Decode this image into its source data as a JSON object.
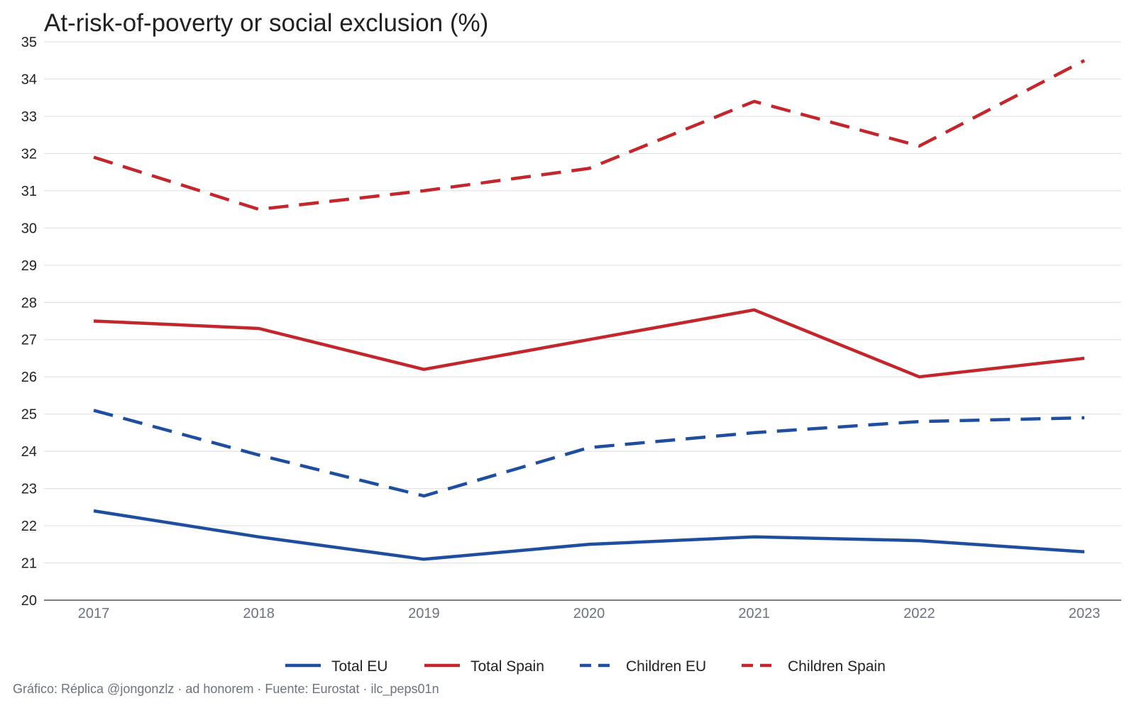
{
  "chart_data": {
    "type": "line",
    "title": "At-risk-of-poverty or social exclusion (%)",
    "xlabel": "",
    "ylabel": "",
    "x": [
      "2017",
      "2018",
      "2019",
      "2020",
      "2021",
      "2022",
      "2023"
    ],
    "ylim": [
      20,
      35
    ],
    "yticks": [
      "20",
      "21",
      "22",
      "23",
      "24",
      "25",
      "26",
      "27",
      "28",
      "29",
      "30",
      "31",
      "32",
      "33",
      "34",
      "35"
    ],
    "grid": true,
    "legend_position": "bottom",
    "series": [
      {
        "name": "Total EU",
        "color": "#1f4e9f",
        "dash": "solid",
        "values": [
          22.4,
          21.7,
          21.1,
          21.5,
          21.7,
          21.6,
          21.3
        ]
      },
      {
        "name": "Total Spain",
        "color": "#c1272d",
        "dash": "solid",
        "values": [
          27.5,
          27.3,
          26.2,
          27.0,
          27.8,
          26.0,
          26.5
        ]
      },
      {
        "name": "Children EU",
        "color": "#1f4e9f",
        "dash": "dashed",
        "values": [
          25.1,
          23.9,
          22.8,
          24.1,
          24.5,
          24.8,
          24.9
        ]
      },
      {
        "name": "Children Spain",
        "color": "#c1272d",
        "dash": "dashed",
        "values": [
          31.9,
          30.5,
          31.0,
          31.6,
          33.4,
          32.2,
          34.5
        ]
      }
    ],
    "caption": "Gráfico: Réplica @jongonzlz · ad honorem  ·  Fuente: Eurostat · ilc_peps01n"
  }
}
